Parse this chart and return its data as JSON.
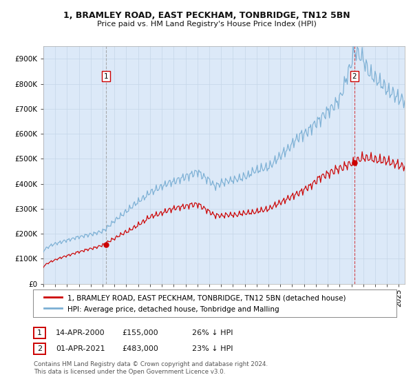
{
  "title1": "1, BRAMLEY ROAD, EAST PECKHAM, TONBRIDGE, TN12 5BN",
  "title2": "Price paid vs. HM Land Registry's House Price Index (HPI)",
  "legend1": "1, BRAMLEY ROAD, EAST PECKHAM, TONBRIDGE, TN12 5BN (detached house)",
  "legend2": "HPI: Average price, detached house, Tonbridge and Malling",
  "point1_label": "1",
  "point1_date": "14-APR-2000",
  "point1_price": "£155,000",
  "point1_hpi": "26% ↓ HPI",
  "point1_year": 2000.29,
  "point1_value": 155000,
  "point2_label": "2",
  "point2_date": "01-APR-2021",
  "point2_price": "£483,000",
  "point2_hpi": "23% ↓ HPI",
  "point2_year": 2021.25,
  "point2_value": 483000,
  "footer": "Contains HM Land Registry data © Crown copyright and database right 2024.\nThis data is licensed under the Open Government Licence v3.0.",
  "plot_bg": "#dce9f8",
  "red_color": "#cc0000",
  "blue_color": "#7bafd4",
  "ylim": [
    0,
    950000
  ],
  "yticks": [
    0,
    100000,
    200000,
    300000,
    400000,
    500000,
    600000,
    700000,
    800000,
    900000
  ],
  "xstart": 1995,
  "xend": 2025.5
}
